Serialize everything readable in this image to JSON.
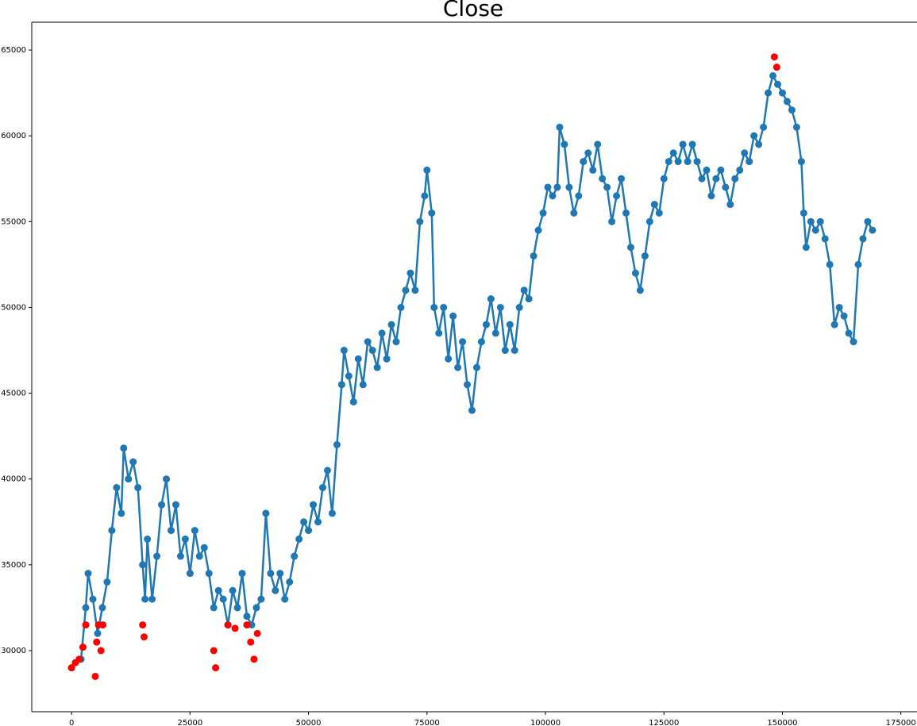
{
  "chart_data": {
    "type": "line",
    "title": "Close",
    "xlim": [
      -8400,
      178400
    ],
    "ylim": [
      26440,
      66620
    ],
    "xticks": [
      0,
      25000,
      50000,
      75000,
      100000,
      125000,
      150000,
      175000
    ],
    "yticks": [
      30000,
      35000,
      40000,
      45000,
      50000,
      55000,
      60000,
      65000
    ],
    "grid": false,
    "series": [
      {
        "color": "#1f77b4",
        "mode": "lines+markers",
        "x": [
          0,
          2000,
          3000,
          3500,
          4500,
          5500,
          6500,
          7500,
          8500,
          9500,
          10500,
          11000,
          12000,
          13000,
          14000,
          15000,
          15500,
          16000,
          17000,
          18000,
          19000,
          20000,
          21000,
          22000,
          23000,
          24000,
          25000,
          26000,
          27000,
          28000,
          29000,
          30000,
          31000,
          32000,
          33000,
          34000,
          35000,
          36000,
          37000,
          38000,
          39000,
          40000,
          41000,
          42000,
          43000,
          44000,
          45000,
          46000,
          47000,
          48000,
          49000,
          50000,
          51000,
          52000,
          53000,
          54000,
          55000,
          56000,
          57000,
          57500,
          58500,
          59500,
          60500,
          61500,
          62500,
          63500,
          64500,
          65500,
          66500,
          67500,
          68500,
          69500,
          70500,
          71500,
          72500,
          73500,
          74500,
          75000,
          76000,
          76500,
          77500,
          78500,
          79500,
          80500,
          81500,
          82500,
          83500,
          84500,
          85500,
          86500,
          87500,
          88500,
          89500,
          90500,
          91500,
          92500,
          93500,
          94500,
          95500,
          96500,
          97500,
          98500,
          99500,
          100500,
          101500,
          102500,
          103000,
          104000,
          105000,
          106000,
          107000,
          108000,
          109000,
          110000,
          111000,
          112000,
          113000,
          114000,
          115000,
          116000,
          117000,
          118000,
          119000,
          120000,
          121000,
          122000,
          123000,
          124000,
          125000,
          126000,
          127000,
          128000,
          129000,
          130000,
          131000,
          132000,
          133000,
          134000,
          135000,
          136000,
          137000,
          138000,
          139000,
          140000,
          141000,
          142000,
          143000,
          144000,
          145000,
          146000,
          147000,
          148000,
          149000,
          150000,
          151000,
          152000,
          153000,
          154000,
          154500,
          155000,
          156000,
          157000,
          158000,
          159000,
          160000,
          161000,
          162000,
          163000,
          164000,
          165000,
          166000,
          167000,
          168000,
          169000
        ],
        "values": [
          29000,
          29500,
          32500,
          34500,
          33000,
          31000,
          32500,
          34000,
          37000,
          39500,
          38000,
          41800,
          40000,
          41000,
          39500,
          35000,
          33000,
          36500,
          33000,
          35500,
          38500,
          40000,
          37000,
          38500,
          35500,
          36500,
          34500,
          37000,
          35500,
          36000,
          34500,
          32500,
          33500,
          33000,
          31500,
          33500,
          32500,
          34500,
          32000,
          31500,
          32500,
          33000,
          38000,
          34500,
          33500,
          34500,
          33000,
          34000,
          35500,
          36500,
          37500,
          37000,
          38500,
          37500,
          39500,
          40500,
          38000,
          42000,
          45500,
          47500,
          46000,
          44500,
          47000,
          45500,
          48000,
          47500,
          46500,
          48500,
          47000,
          49000,
          48000,
          50000,
          51000,
          52000,
          51000,
          55000,
          56500,
          58000,
          55500,
          50000,
          48500,
          50000,
          47000,
          49500,
          46500,
          48000,
          45500,
          44000,
          46500,
          48000,
          49000,
          50500,
          48500,
          50000,
          47500,
          49000,
          47500,
          50000,
          51000,
          50500,
          53000,
          54500,
          55500,
          57000,
          56500,
          57000,
          60500,
          59500,
          57000,
          55500,
          56500,
          58500,
          59000,
          58000,
          59500,
          57500,
          57000,
          55000,
          56500,
          57500,
          55500,
          53500,
          52000,
          51000,
          53000,
          55000,
          56000,
          55500,
          57500,
          58500,
          59000,
          58500,
          59500,
          58500,
          59500,
          58500,
          57500,
          58000,
          56500,
          57500,
          58000,
          57000,
          56000,
          57500,
          58000,
          59000,
          58500,
          60000,
          59500,
          60500,
          62500,
          63500,
          63000,
          62500,
          62000,
          61500,
          60500,
          58500,
          55500,
          53500,
          55000,
          54500,
          55000,
          54000,
          52500,
          49000,
          50000,
          49500,
          48500,
          48000,
          52500,
          54000,
          55000,
          54500
        ]
      },
      {
        "color": "#ff0000",
        "mode": "markers",
        "x": [
          0,
          800,
          1600,
          2400,
          3000,
          5000,
          5300,
          5700,
          6200,
          6600,
          15000,
          15300,
          30000,
          30400,
          33000,
          34500,
          37000,
          37800,
          38500,
          39200,
          148300,
          148800
        ],
        "values": [
          29000,
          29300,
          29500,
          30200,
          31500,
          28500,
          30500,
          31500,
          30000,
          31500,
          31500,
          30800,
          30000,
          29000,
          31500,
          31300,
          31500,
          30500,
          29500,
          31000,
          64600,
          64000
        ]
      }
    ]
  }
}
